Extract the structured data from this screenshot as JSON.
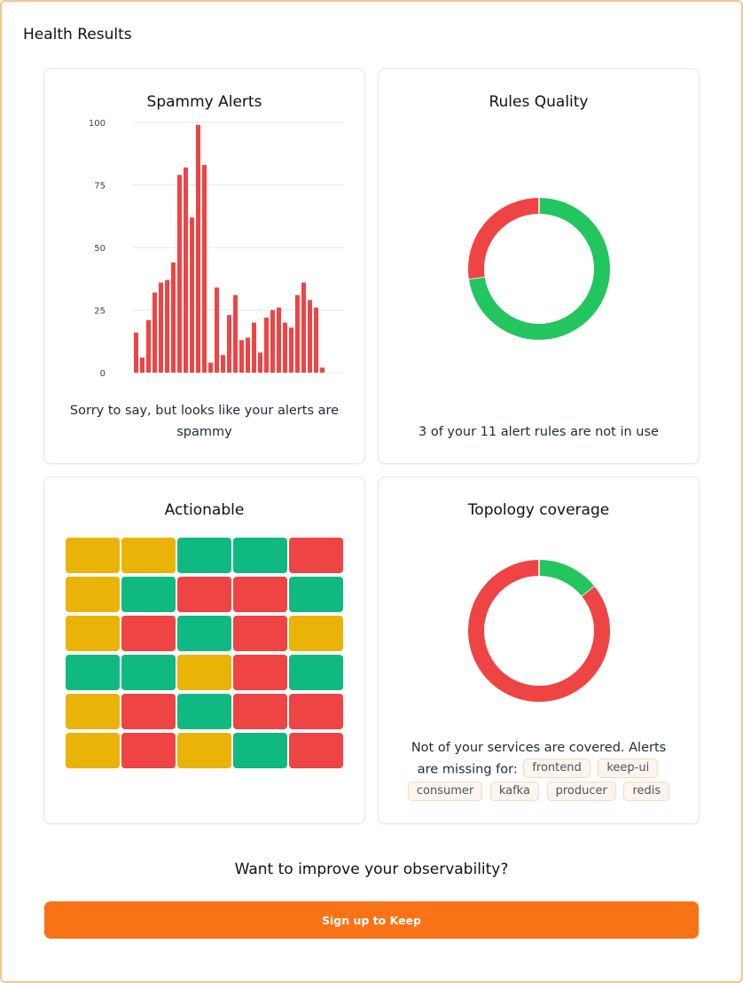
{
  "page": {
    "title": "Health Results"
  },
  "spammy": {
    "title": "Spammy Alerts",
    "message": "Sorry to say, but looks like your alerts are spammy"
  },
  "rules_quality": {
    "title": "Rules Quality",
    "message": "3 of your 11 alert rules are not in use",
    "segments": [
      {
        "label": "in use",
        "value": 8,
        "color": "#22c55e"
      },
      {
        "label": "not in use",
        "value": 3,
        "color": "#ef4444"
      }
    ]
  },
  "actionable": {
    "title": "Actionable",
    "colors": {
      "y": "#eab308",
      "g": "#10b981",
      "r": "#ef4444"
    },
    "rows": [
      [
        "y",
        "y",
        "g",
        "g",
        "r"
      ],
      [
        "y",
        "g",
        "r",
        "r",
        "g"
      ],
      [
        "y",
        "r",
        "g",
        "r",
        "y"
      ],
      [
        "g",
        "g",
        "y",
        "r",
        "g"
      ],
      [
        "y",
        "r",
        "g",
        "r",
        "r"
      ],
      [
        "y",
        "r",
        "y",
        "g",
        "r"
      ]
    ]
  },
  "topology": {
    "title": "Topology coverage",
    "message_line1": "Not of your services are covered. Alerts",
    "message_line2": "are missing for:",
    "services": [
      "frontend",
      "keep-ui",
      "consumer",
      "kafka",
      "producer",
      "redis"
    ],
    "segments": [
      {
        "label": "covered",
        "value": 1,
        "color": "#22c55e"
      },
      {
        "label": "missing",
        "value": 6,
        "color": "#ef4444"
      }
    ]
  },
  "cta": {
    "title": "Want to improve your observability?",
    "button_label": "Sign up to Keep"
  },
  "chart_data": {
    "type": "bar",
    "title": "Spammy Alerts",
    "xlabel": "",
    "ylabel": "",
    "ylim": [
      0,
      100
    ],
    "yticks": [
      0,
      25,
      50,
      75,
      100
    ],
    "grid": true,
    "color": "#ef4444",
    "values": [
      16,
      6,
      21,
      32,
      36,
      37,
      44,
      79,
      82,
      62,
      99,
      83,
      4,
      34,
      7,
      23,
      31,
      13,
      14,
      20,
      8,
      22,
      25,
      26,
      20,
      18,
      31,
      36,
      29,
      26,
      2
    ]
  }
}
